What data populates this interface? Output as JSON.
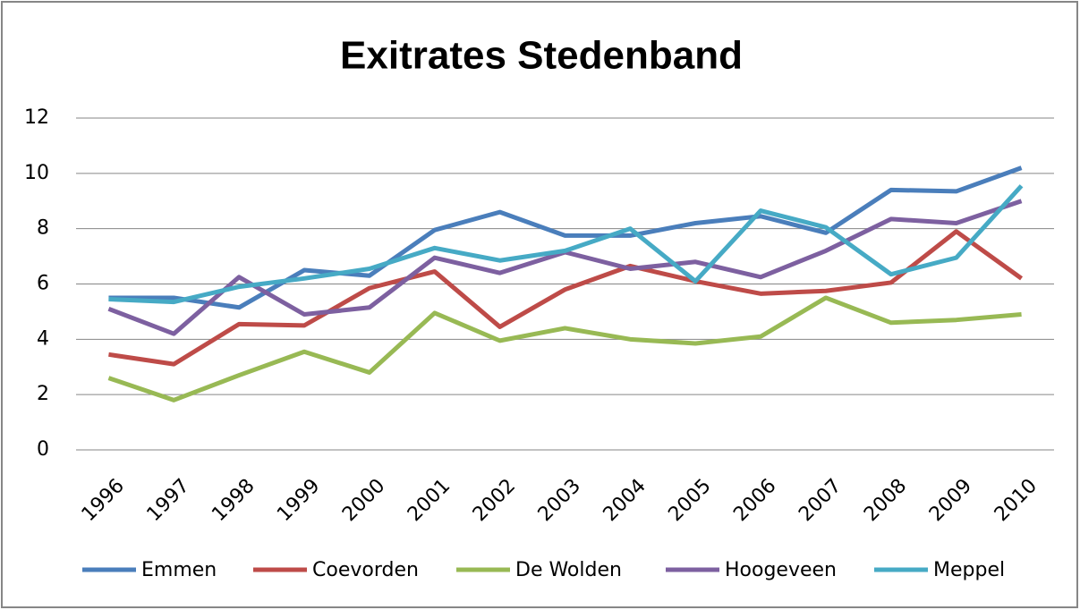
{
  "chart_data": {
    "type": "line",
    "title": "Exitrates Stedenband",
    "categories": [
      "1996",
      "1997",
      "1998",
      "1999",
      "2000",
      "2001",
      "2002",
      "2003",
      "2004",
      "2005",
      "2006",
      "2007",
      "2008",
      "2009",
      "2010"
    ],
    "series": [
      {
        "name": "Emmen",
        "color": "#4a7ebb",
        "values": [
          5.5,
          5.5,
          5.15,
          6.5,
          6.3,
          7.95,
          8.6,
          7.75,
          7.75,
          8.2,
          8.45,
          7.85,
          9.4,
          9.35,
          10.2
        ]
      },
      {
        "name": "Coevorden",
        "color": "#be4b48",
        "values": [
          3.45,
          3.1,
          4.55,
          4.5,
          5.85,
          6.45,
          4.45,
          5.8,
          6.65,
          6.1,
          5.65,
          5.75,
          6.05,
          7.9,
          6.2
        ]
      },
      {
        "name": "De Wolden",
        "color": "#98b954",
        "values": [
          2.6,
          1.8,
          2.7,
          3.55,
          2.8,
          4.95,
          3.95,
          4.4,
          4.0,
          3.85,
          4.1,
          5.5,
          4.6,
          4.7,
          4.9
        ]
      },
      {
        "name": "Hoogeveen",
        "color": "#7d60a0",
        "values": [
          5.1,
          4.2,
          6.25,
          4.9,
          5.15,
          6.95,
          6.4,
          7.15,
          6.55,
          6.8,
          6.25,
          7.2,
          8.35,
          8.2,
          9.0
        ]
      },
      {
        "name": "Meppel",
        "color": "#46aac5",
        "values": [
          5.45,
          5.35,
          5.9,
          6.2,
          6.55,
          7.3,
          6.85,
          7.2,
          8.0,
          6.1,
          8.65,
          8.05,
          6.35,
          6.95,
          9.55
        ]
      }
    ],
    "ylim": [
      0,
      12
    ],
    "yticks": [
      0,
      2,
      4,
      6,
      8,
      10,
      12
    ],
    "grid": true,
    "legend": "bottom"
  }
}
